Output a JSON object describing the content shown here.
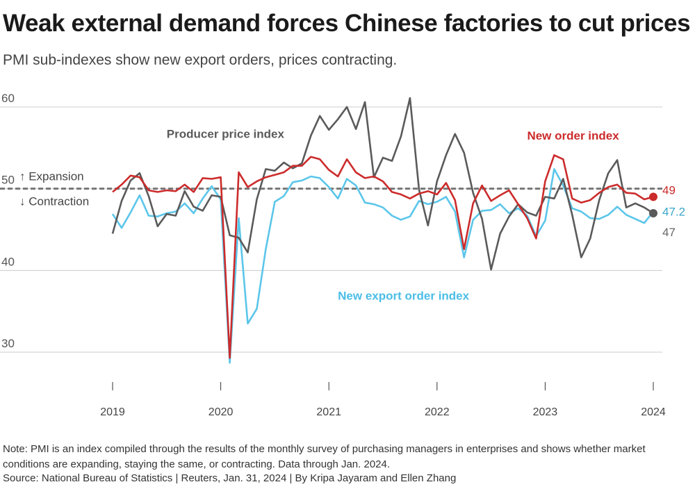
{
  "title": "Weak external demand forces Chinese factories to cut prices",
  "subtitle": "PMI sub-indexes show new export orders, prices contracting.",
  "note": "Note: PMI is an index compiled through the results of the monthly survey of purchasing managers in enterprises and shows whether market conditions are expanding, staying the same, or contracting. Data through Jan. 2024.",
  "source": "Source: National Bureau of Statistics | Reuters, Jan. 31, 2024 | By Kripa Jayaram and Ellen Zhang",
  "chart_data": {
    "type": "line",
    "x_start": "2019-01",
    "x_end": "2024-01",
    "x_ticks": [
      {
        "date": "2019-01",
        "label": "2019"
      },
      {
        "date": "2020-01",
        "label": "2020"
      },
      {
        "date": "2021-01",
        "label": "2021"
      },
      {
        "date": "2022-01",
        "label": "2022"
      },
      {
        "date": "2023-01",
        "label": "2023"
      },
      {
        "date": "2024-01",
        "label": "2024"
      }
    ],
    "ylim": [
      27,
      62
    ],
    "y_ticks": [
      30,
      40,
      50,
      60
    ],
    "threshold": {
      "value": 50,
      "above_label": "↑ Expansion",
      "below_label": "↓ Contraction"
    },
    "grid": true,
    "colors": {
      "producer": "#5a5a5a",
      "new_order": "#cc2b2b",
      "export": "#5bc6ea",
      "grid": "#cccccc",
      "threshold": "#777777"
    },
    "series": [
      {
        "key": "producer",
        "name": "Producer price index",
        "end_label": "47",
        "values": [
          44.5,
          48.5,
          51,
          51.9,
          49.1,
          45.4,
          46.9,
          46.7,
          49.7,
          47.8,
          47.3,
          49.2,
          49.0,
          44.3,
          44.0,
          42.2,
          48.7,
          52.4,
          52.2,
          53.2,
          52.5,
          53.1,
          56.5,
          58.9,
          57.2,
          58.5,
          60.0,
          57.3,
          60.6,
          51.4,
          53.8,
          53.4,
          56.4,
          61.1,
          49.9,
          45.5,
          50.9,
          54.1,
          56.7,
          54.4,
          49.5,
          46.3,
          40.1,
          44.5,
          46.6,
          48.1,
          47.1,
          46.7,
          49.0,
          48.8,
          51.2,
          46.8,
          41.6,
          43.9,
          48.6,
          51.9,
          53.5,
          47.7,
          48.2,
          47.7,
          47.0
        ],
        "label_pos": {
          "date": "2019-07",
          "value": 56.2
        }
      },
      {
        "key": "new_order",
        "name": "New order index",
        "end_label": "49",
        "values": [
          49.6,
          50.5,
          51.6,
          51.4,
          49.8,
          49.6,
          49.8,
          49.7,
          50.5,
          49.6,
          51.3,
          51.2,
          51.4,
          29.3,
          52.0,
          50.2,
          50.9,
          51.4,
          51.7,
          52.0,
          52.8,
          52.8,
          53.9,
          53.6,
          52.3,
          51.5,
          53.6,
          52.0,
          51.3,
          51.5,
          50.9,
          49.6,
          49.3,
          48.8,
          49.4,
          49.7,
          49.3,
          50.7,
          48.6,
          42.6,
          48.2,
          50.4,
          48.5,
          49.2,
          49.8,
          48.1,
          46.4,
          43.9,
          50.9,
          54.1,
          53.6,
          48.8,
          48.3,
          48.6,
          49.5,
          50.2,
          50.5,
          49.5,
          49.4,
          48.7,
          49.0
        ],
        "label_pos": {
          "date": "2022-11",
          "value": 56.0
        }
      },
      {
        "key": "export",
        "name": "New export order index",
        "end_label": "47.2",
        "values": [
          46.9,
          45.2,
          47.1,
          49.2,
          46.7,
          46.6,
          47.0,
          47.2,
          48.2,
          47.0,
          48.8,
          50.3,
          48.7,
          28.7,
          46.4,
          33.5,
          35.3,
          42.6,
          48.4,
          49.1,
          50.8,
          51.0,
          51.5,
          51.3,
          50.2,
          48.8,
          51.2,
          50.4,
          48.3,
          48.1,
          47.7,
          46.7,
          46.2,
          46.6,
          48.5,
          48.1,
          48.4,
          49.0,
          47.2,
          41.6,
          46.2,
          47.3,
          47.4,
          48.1,
          47.0,
          47.6,
          46.7,
          44.2,
          46.1,
          52.4,
          50.4,
          47.6,
          47.2,
          46.4,
          46.3,
          46.8,
          47.8,
          46.8,
          46.3,
          45.8,
          47.2
        ],
        "label_pos": {
          "date": "2021-02",
          "value": 36.4
        }
      }
    ]
  }
}
